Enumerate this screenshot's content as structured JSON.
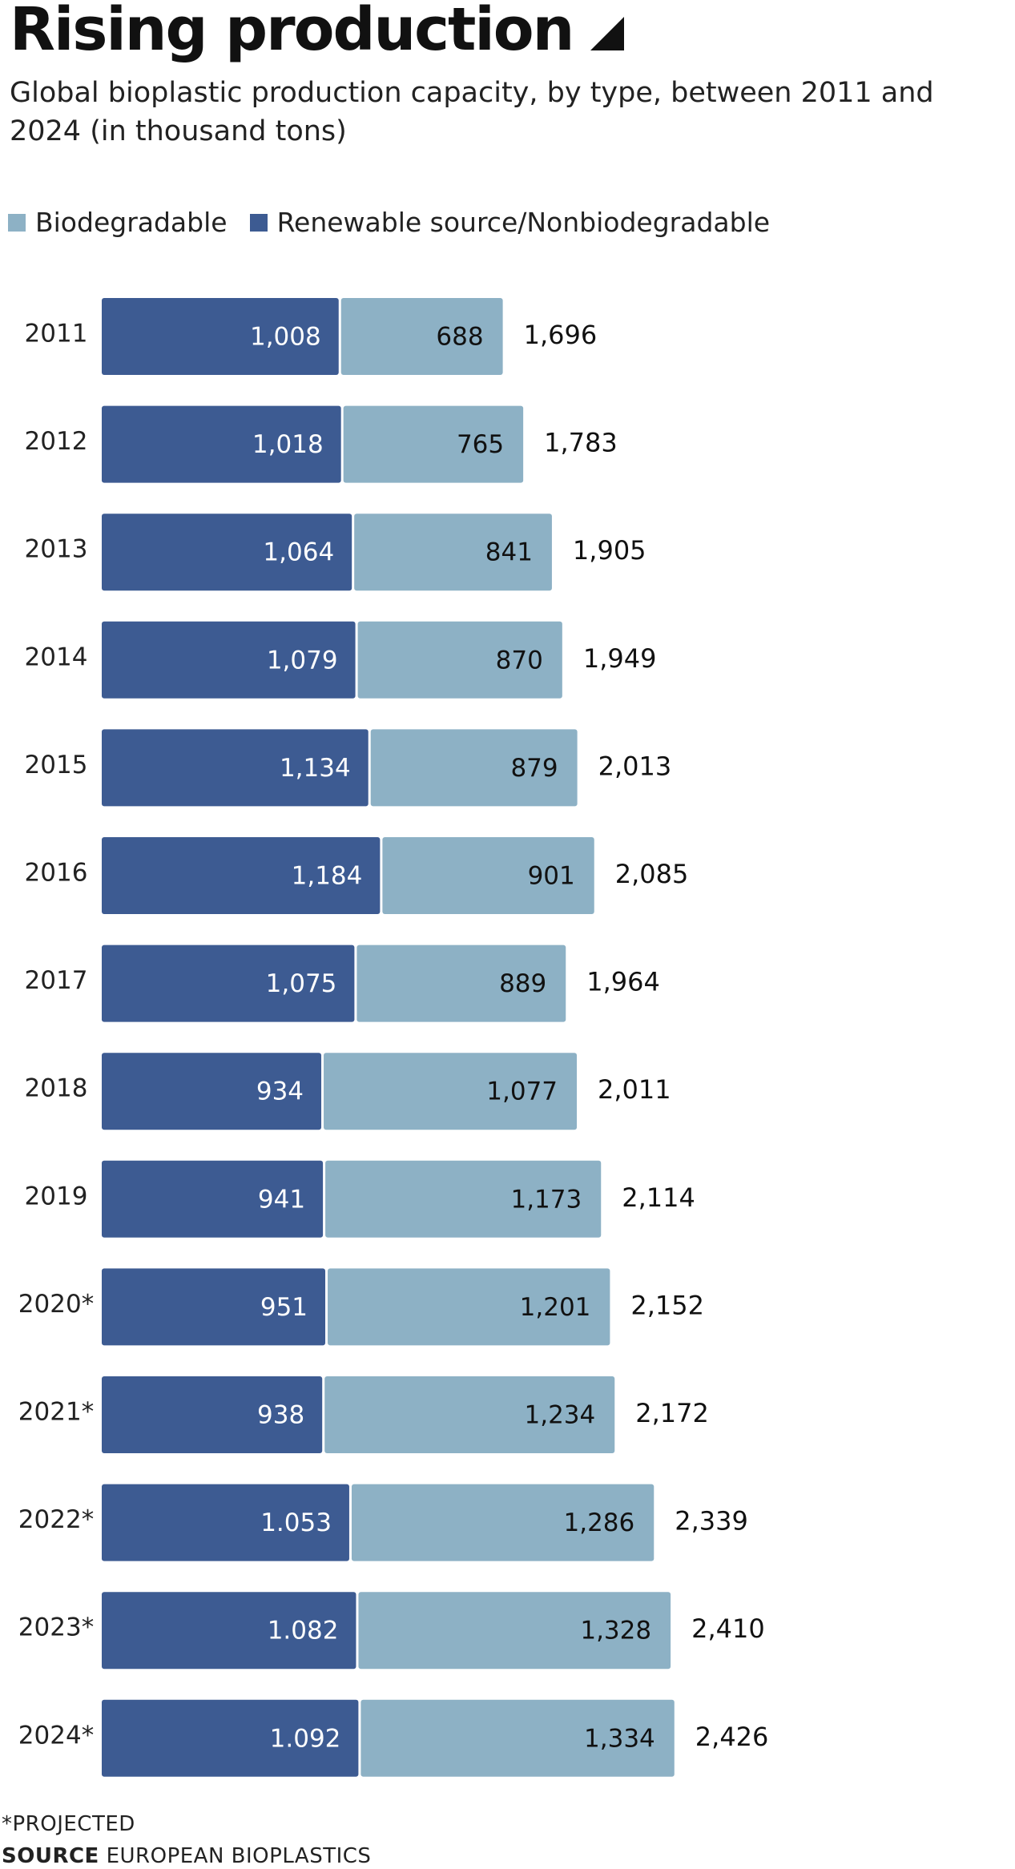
{
  "header": {
    "title": "Rising production",
    "subtitle": "Global bioplastic production capacity, by type, between 2011 and 2024 (in thousand tons)"
  },
  "legend": {
    "items": [
      {
        "label": "Biodegradable",
        "color": "#8db1c5"
      },
      {
        "label": "Renewable source/Nonbiodegradable",
        "color": "#3d5b92"
      }
    ]
  },
  "chart_data": {
    "type": "bar",
    "orientation": "horizontal",
    "stacked": true,
    "categories": [
      "2011",
      "2012",
      "2013",
      "2014",
      "2015",
      "2016",
      "2017",
      "2018",
      "2019",
      "2020*",
      "2021*",
      "2022*",
      "2023*",
      "2024*"
    ],
    "series": [
      {
        "name": "Renewable source/Nonbiodegradable",
        "color": "#3d5b92",
        "values": [
          1008,
          1018,
          1064,
          1079,
          1134,
          1184,
          1075,
          934,
          941,
          951,
          938,
          1053,
          1082,
          1092
        ],
        "labels": [
          "1,008",
          "1,018",
          "1,064",
          "1,079",
          "1,134",
          "1,184",
          "1,075",
          "934",
          "941",
          "951",
          "938",
          "1.053",
          "1.082",
          "1.092"
        ]
      },
      {
        "name": "Biodegradable",
        "color": "#8db1c5",
        "values": [
          688,
          765,
          841,
          870,
          879,
          901,
          889,
          1077,
          1173,
          1201,
          1234,
          1286,
          1328,
          1334
        ],
        "labels": [
          "688",
          "765",
          "841",
          "870",
          "879",
          "901",
          "889",
          "1,077",
          "1,173",
          "1,201",
          "1,234",
          "1,286",
          "1,328",
          "1,334"
        ]
      }
    ],
    "totals": [
      1696,
      1783,
      1905,
      1949,
      2013,
      2085,
      1964,
      2011,
      2114,
      2152,
      2172,
      2339,
      2410,
      2426
    ],
    "total_labels": [
      "1,696",
      "1,783",
      "1,905",
      "1,949",
      "2,013",
      "2,085",
      "1,964",
      "2,011",
      "2,114",
      "2,152",
      "2,172",
      "2,339",
      "2,410",
      "2,426"
    ],
    "legend_position": "top-left",
    "grid": false
  },
  "footer": {
    "footnote": "*PROJECTED",
    "source_label": "SOURCE",
    "source_text": " EUROPEAN BIOPLASTICS"
  }
}
